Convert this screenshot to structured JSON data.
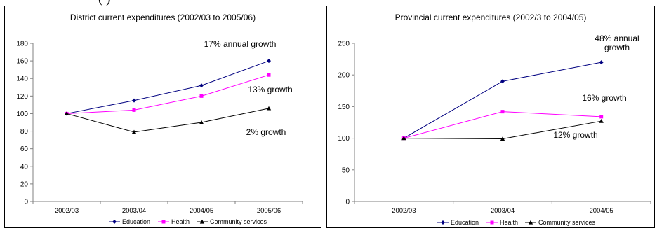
{
  "header_fragment": "(                                        )",
  "chart_data": [
    {
      "type": "line",
      "title": "District current expenditures (2002/03 to 2005/06)",
      "xlabel": "",
      "ylabel": "",
      "categories": [
        "2002/03",
        "2003/04",
        "2004/05",
        "2005/06"
      ],
      "ylim": [
        0,
        180
      ],
      "yticks": [
        0,
        20,
        40,
        60,
        80,
        100,
        120,
        140,
        160,
        180
      ],
      "grid": false,
      "legend_position": "bottom",
      "series": [
        {
          "name": "Education",
          "values": [
            100,
            115,
            132,
            160
          ],
          "color": "#000080",
          "marker": "diamond"
        },
        {
          "name": "Health",
          "values": [
            100,
            104,
            120,
            144
          ],
          "color": "#FF00FF",
          "marker": "square"
        },
        {
          "name": "Community services",
          "values": [
            100,
            79,
            90,
            106
          ],
          "color": "#000000",
          "marker": "triangle"
        }
      ],
      "annotations": [
        {
          "lines": [
            "17% annual growth"
          ],
          "anchor": "Education"
        },
        {
          "lines": [
            "13% growth"
          ],
          "anchor": "Health"
        },
        {
          "lines": [
            "2% growth"
          ],
          "anchor": "Community services"
        }
      ]
    },
    {
      "type": "line",
      "title": "Provincial current expenditures (2002/3 to 2004/05)",
      "xlabel": "",
      "ylabel": "",
      "categories": [
        "2002/03",
        "2003/04",
        "2004/05"
      ],
      "ylim": [
        0,
        250
      ],
      "yticks": [
        0,
        50,
        100,
        150,
        200,
        250
      ],
      "grid": false,
      "legend_position": "bottom",
      "series": [
        {
          "name": "Education",
          "values": [
            100,
            190,
            220
          ],
          "color": "#000080",
          "marker": "diamond"
        },
        {
          "name": "Health",
          "values": [
            100,
            142,
            134
          ],
          "color": "#FF00FF",
          "marker": "square"
        },
        {
          "name": "Community services",
          "values": [
            100,
            99,
            127
          ],
          "color": "#000000",
          "marker": "triangle"
        }
      ],
      "annotations": [
        {
          "lines": [
            "48% annual",
            "growth"
          ],
          "anchor": "Education"
        },
        {
          "lines": [
            "16% growth"
          ],
          "anchor": "Health"
        },
        {
          "lines": [
            "12% growth"
          ],
          "anchor": "Community services"
        }
      ]
    }
  ]
}
